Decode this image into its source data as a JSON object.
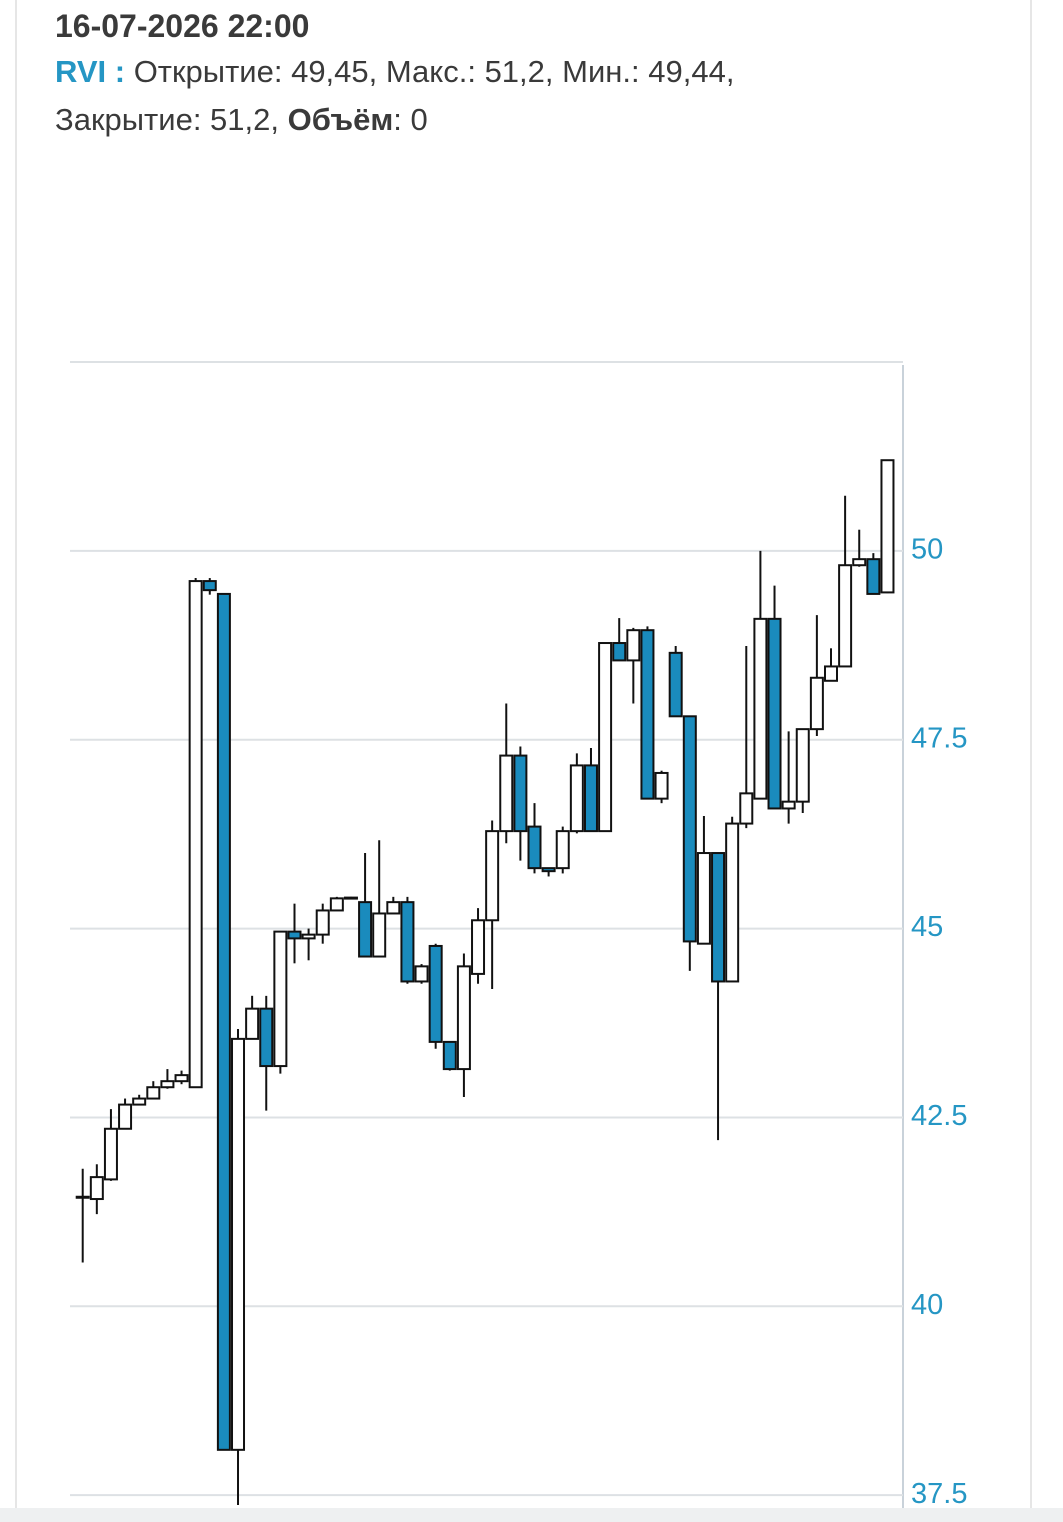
{
  "chart_data": {
    "type": "candlestick",
    "tooltip": {
      "date": "16-07-2026 22:00",
      "symbol": "RVI :",
      "colon": ": ",
      "separator": ", ",
      "items": [
        {
          "label": "Открытие",
          "value": "49,45"
        },
        {
          "label": "Макс.",
          "value": "51,2"
        },
        {
          "label": "Мин.",
          "value": "49,44"
        },
        {
          "label": "Закрытие",
          "value": "51,2"
        },
        {
          "label": "Объём",
          "value": "0"
        }
      ]
    },
    "up_color": "#ffffff",
    "down_color": "#1a8bbd",
    "open": [
      41.44,
      41.42,
      41.68,
      42.35,
      42.67,
      42.75,
      42.9,
      42.98,
      42.9,
      49.6,
      49.43,
      38.1,
      43.54,
      43.94,
      43.18,
      44.96,
      44.87,
      44.92,
      45.24,
      45.4,
      45.35,
      44.63,
      45.2,
      45.35,
      44.3,
      44.77,
      43.5,
      43.14,
      44.4,
      45.11,
      46.29,
      47.29,
      46.35,
      45.8,
      45.8,
      46.29,
      47.16,
      46.29,
      48.78,
      48.55,
      48.95,
      46.72,
      48.65,
      47.81,
      44.8,
      46.0,
      44.3,
      46.39,
      46.72,
      49.1,
      46.59,
      46.68,
      47.64,
      48.28,
      48.47,
      49.81,
      49.89,
      49.45
    ],
    "high": [
      41.82,
      41.88,
      42.61,
      42.75,
      42.8,
      42.98,
      43.14,
      43.12,
      49.64,
      49.64,
      49.43,
      43.67,
      44.11,
      44.11,
      44.96,
      45.33,
      45.0,
      45.33,
      45.42,
      45.42,
      46.0,
      46.17,
      45.42,
      45.42,
      44.53,
      44.8,
      43.5,
      44.67,
      45.27,
      46.43,
      47.98,
      47.41,
      46.66,
      45.8,
      46.35,
      47.32,
      47.39,
      48.78,
      49.11,
      48.98,
      49.0,
      47.09,
      48.74,
      47.81,
      46.49,
      46.0,
      46.48,
      48.74,
      50.0,
      49.54,
      47.61,
      47.64,
      49.15,
      48.71,
      50.73,
      50.28,
      49.97,
      51.2
    ],
    "low": [
      40.58,
      41.22,
      41.66,
      42.35,
      42.67,
      42.75,
      42.88,
      42.94,
      42.9,
      49.42,
      38.1,
      37.37,
      43.54,
      42.59,
      43.08,
      44.54,
      44.58,
      44.8,
      45.24,
      45.4,
      44.63,
      44.63,
      45.2,
      44.27,
      44.27,
      43.41,
      43.12,
      42.77,
      44.27,
      44.2,
      46.13,
      45.9,
      45.73,
      45.69,
      45.73,
      46.26,
      46.29,
      46.29,
      48.55,
      47.98,
      46.72,
      46.66,
      47.81,
      44.44,
      44.8,
      42.2,
      44.3,
      46.33,
      46.72,
      46.59,
      46.39,
      46.53,
      47.55,
      48.28,
      48.47,
      49.79,
      49.43,
      49.44
    ],
    "close": [
      41.45,
      41.71,
      42.35,
      42.67,
      42.75,
      42.9,
      42.98,
      43.06,
      49.6,
      49.48,
      38.1,
      43.54,
      43.94,
      43.18,
      44.96,
      44.87,
      44.92,
      45.24,
      45.4,
      45.41,
      44.63,
      45.2,
      45.35,
      44.3,
      44.5,
      43.5,
      43.14,
      44.5,
      45.11,
      46.29,
      47.29,
      46.29,
      45.8,
      45.76,
      46.29,
      47.16,
      46.29,
      48.78,
      48.55,
      48.95,
      46.72,
      47.06,
      47.81,
      44.83,
      46.0,
      44.3,
      46.39,
      46.79,
      49.1,
      46.59,
      46.68,
      47.64,
      48.32,
      48.47,
      49.81,
      49.89,
      49.43,
      51.2
    ],
    "ylim": [
      37.33,
      52.5
    ],
    "yticks": [
      37.5,
      40,
      42.5,
      45,
      47.5,
      50
    ],
    "grid": true
  }
}
